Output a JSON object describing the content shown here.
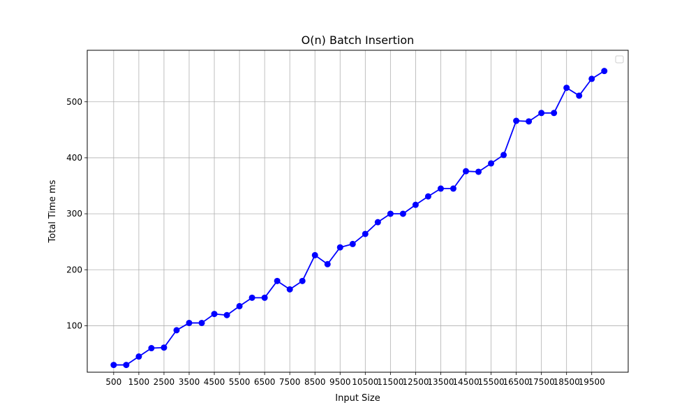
{
  "chart_data": {
    "type": "line",
    "title": "O(n) Batch Insertion",
    "xlabel": "Input Size",
    "ylabel": "Total Time ms",
    "xlim": [
      -550,
      20950
    ],
    "ylim": [
      17,
      592
    ],
    "x_ticks": [
      500,
      1500,
      2500,
      3500,
      4500,
      5500,
      6500,
      7500,
      8500,
      9500,
      10500,
      11500,
      12500,
      13500,
      14500,
      15500,
      16500,
      17500,
      18500,
      19500
    ],
    "y_ticks": [
      100,
      200,
      300,
      400,
      500
    ],
    "grid": true,
    "legend_placement": "top-right",
    "colors": {
      "line": "#0000ff",
      "grid": "#b0b0b0",
      "axes": "#000000"
    },
    "series": [
      {
        "x": [
          500,
          1000,
          1500,
          2000,
          2500,
          3000,
          3500,
          4000,
          4500,
          5000,
          5500,
          6000,
          6500,
          7000,
          7500,
          8000,
          8500,
          9000,
          9500,
          10000,
          10500,
          11000,
          11500,
          12000,
          12500,
          13000,
          13500,
          14000,
          14500,
          15000,
          15500,
          16000,
          16500,
          17000,
          17500,
          18000,
          18500,
          19000,
          19500,
          20000
        ],
        "y": [
          30,
          30,
          45,
          60,
          61,
          92,
          105,
          105,
          121,
          119,
          135,
          150,
          150,
          180,
          165,
          180,
          226,
          210,
          240,
          246,
          264,
          285,
          300,
          300,
          316,
          331,
          345,
          345,
          376,
          375,
          390,
          405,
          466,
          465,
          480,
          480,
          525,
          511,
          541,
          555
        ]
      }
    ]
  }
}
